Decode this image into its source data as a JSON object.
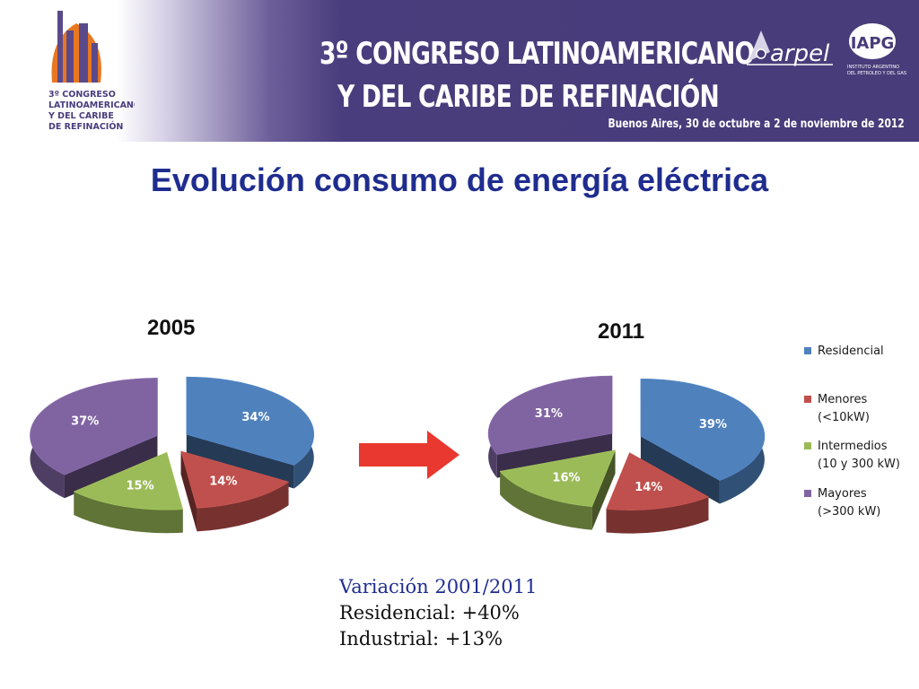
{
  "banner": {
    "line1": "3º CONGRESO LATINOAMERICANO",
    "line2": "Y DEL CARIBE DE REFINACIÓN",
    "subtitle": "Buenos Aires, 30 de octubre a 2 de noviembre de 2012",
    "logo_left_text": [
      "3º CONGRESO",
      "LATINOAMERICANO",
      "Y DEL CARIBE",
      "DE REFINACIÓN"
    ],
    "arpel_text": "arpel",
    "iapg_text": "IAPG",
    "iapg_caption": [
      "INSTITUTO ARGENTINO",
      "DEL PETROLEO Y DEL GAS"
    ]
  },
  "title": "Evolución consumo de energía eléctrica",
  "colors": {
    "residencial": "#4f81bd",
    "menores": "#c0504d",
    "intermedios": "#9bbb59",
    "mayores": "#8064a2",
    "title": "#1f2d8f",
    "banner": "#483c7a",
    "arrow": "#e8382f"
  },
  "legend": [
    {
      "label": "Residencial",
      "color": "#4f81bd"
    },
    {
      "label": "Menores\n(<10kW)",
      "color": "#c0504d"
    },
    {
      "label": "Intermedios\n(10 y 300 kW)",
      "color": "#9bbb59"
    },
    {
      "label": "Mayores\n(>300 kW)",
      "color": "#8064a2"
    }
  ],
  "chart_data": [
    {
      "type": "pie",
      "title": "2005",
      "categories": [
        "Residencial",
        "Menores (<10kW)",
        "Intermedios (10 y 300 kW)",
        "Mayores (>300 kW)"
      ],
      "values": [
        34,
        14,
        15,
        37
      ],
      "labels": [
        "34%",
        "14%",
        "15%",
        "37%"
      ],
      "style": "3d-exploded"
    },
    {
      "type": "pie",
      "title": "2011",
      "categories": [
        "Residencial",
        "Menores (<10kW)",
        "Intermedios (10 y 300 kW)",
        "Mayores (>300 kW)"
      ],
      "values": [
        39,
        14,
        16,
        31
      ],
      "labels": [
        "39%",
        "14%",
        "16%",
        "31%"
      ],
      "style": "3d-exploded"
    }
  ],
  "variation": {
    "title": "Variación 2001/2011",
    "lines": [
      "Residencial: +40%",
      "Industrial: +13%"
    ]
  }
}
